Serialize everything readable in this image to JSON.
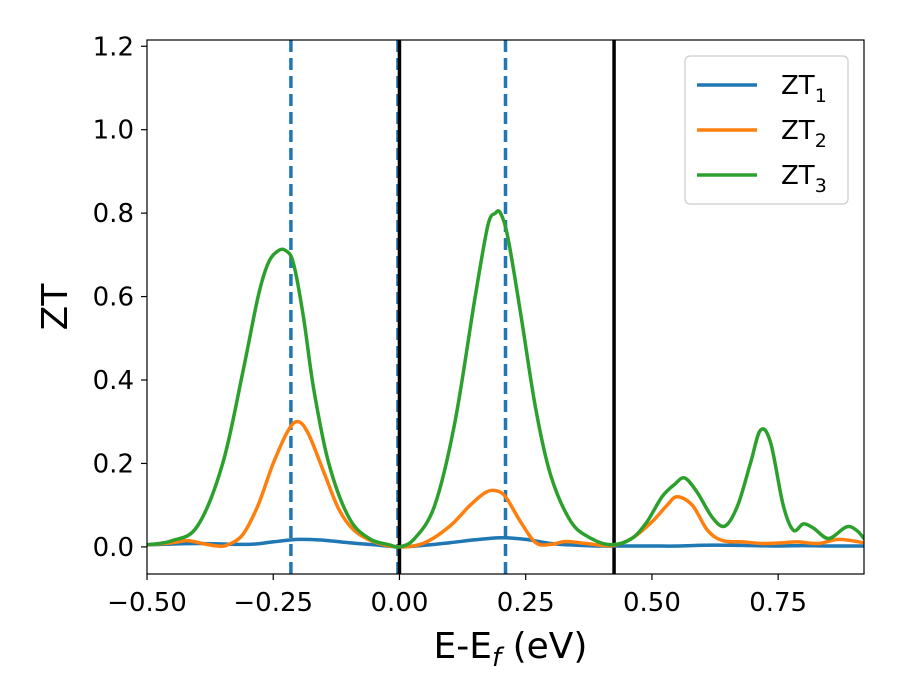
{
  "chart_data": {
    "type": "line",
    "xlabel": {
      "main": "E-E",
      "sub": "f",
      "suffix": " (eV)"
    },
    "ylabel": "ZT",
    "xlim": [
      -0.5,
      0.92
    ],
    "ylim": [
      -0.065,
      1.215
    ],
    "xticks": [
      -0.5,
      -0.25,
      0.0,
      0.25,
      0.5,
      0.75
    ],
    "xtick_labels": [
      "−0.50",
      "−0.25",
      "0.00",
      "0.25",
      "0.50",
      "0.75"
    ],
    "yticks": [
      0.0,
      0.2,
      0.4,
      0.6,
      0.8,
      1.0,
      1.2
    ],
    "ytick_labels": [
      "0.0",
      "0.2",
      "0.4",
      "0.6",
      "0.8",
      "1.0",
      "1.2"
    ],
    "legend_position": "top-right",
    "vlines": [
      {
        "x": -0.215,
        "style": "dashed",
        "color": "#1f77b4"
      },
      {
        "x": 0.21,
        "style": "dashed",
        "color": "#1f77b4"
      },
      {
        "x": -0.003,
        "style": "dashed",
        "color": "#1f77b4"
      },
      {
        "x": 0.0,
        "style": "solid",
        "color": "#000000"
      },
      {
        "x": 0.425,
        "style": "solid",
        "color": "#000000"
      }
    ],
    "series": [
      {
        "name": "ZT",
        "sub": "1",
        "color": "#1f77b4",
        "x": [
          -0.5,
          -0.4,
          -0.3,
          -0.25,
          -0.2,
          -0.15,
          -0.1,
          -0.05,
          0.0,
          0.05,
          0.1,
          0.15,
          0.2,
          0.25,
          0.3,
          0.35,
          0.4,
          0.45,
          0.5,
          0.55,
          0.6,
          0.65,
          0.7,
          0.75,
          0.8,
          0.85,
          0.92
        ],
        "values": [
          0.005,
          0.008,
          0.006,
          0.012,
          0.018,
          0.016,
          0.01,
          0.005,
          0.0,
          0.004,
          0.01,
          0.017,
          0.022,
          0.018,
          0.008,
          0.004,
          0.002,
          0.002,
          0.002,
          0.002,
          0.004,
          0.004,
          0.003,
          0.002,
          0.003,
          0.002,
          0.002
        ]
      },
      {
        "name": "ZT",
        "sub": "2",
        "color": "#ff7f0e",
        "x": [
          -0.5,
          -0.45,
          -0.42,
          -0.39,
          -0.36,
          -0.34,
          -0.31,
          -0.28,
          -0.25,
          -0.22,
          -0.2,
          -0.18,
          -0.15,
          -0.12,
          -0.09,
          -0.05,
          0.0,
          0.05,
          0.1,
          0.14,
          0.17,
          0.19,
          0.21,
          0.24,
          0.27,
          0.3,
          0.33,
          0.37,
          0.42,
          0.46,
          0.5,
          0.53,
          0.55,
          0.58,
          0.61,
          0.64,
          0.68,
          0.72,
          0.76,
          0.79,
          0.83,
          0.87,
          0.92
        ],
        "values": [
          0.005,
          0.01,
          0.015,
          0.008,
          0.002,
          0.005,
          0.03,
          0.1,
          0.2,
          0.28,
          0.3,
          0.27,
          0.18,
          0.09,
          0.04,
          0.012,
          0.0,
          0.01,
          0.05,
          0.1,
          0.13,
          0.135,
          0.12,
          0.06,
          0.01,
          0.006,
          0.013,
          0.008,
          0.003,
          0.02,
          0.06,
          0.1,
          0.12,
          0.1,
          0.04,
          0.015,
          0.012,
          0.008,
          0.01,
          0.012,
          0.008,
          0.018,
          0.01
        ]
      },
      {
        "name": "ZT",
        "sub": "3",
        "color": "#2ca02c",
        "x": [
          -0.5,
          -0.45,
          -0.4,
          -0.35,
          -0.31,
          -0.28,
          -0.26,
          -0.24,
          -0.225,
          -0.21,
          -0.19,
          -0.17,
          -0.14,
          -0.1,
          -0.06,
          -0.02,
          0.0,
          0.03,
          0.07,
          0.11,
          0.15,
          0.175,
          0.19,
          0.2,
          0.215,
          0.24,
          0.27,
          0.3,
          0.34,
          0.38,
          0.42,
          0.46,
          0.49,
          0.52,
          0.545,
          0.565,
          0.59,
          0.62,
          0.645,
          0.67,
          0.695,
          0.715,
          0.735,
          0.76,
          0.78,
          0.8,
          0.82,
          0.85,
          0.885,
          0.905,
          0.92
        ],
        "values": [
          0.005,
          0.015,
          0.05,
          0.2,
          0.42,
          0.6,
          0.68,
          0.71,
          0.71,
          0.68,
          0.55,
          0.38,
          0.2,
          0.07,
          0.02,
          0.005,
          0.0,
          0.02,
          0.1,
          0.3,
          0.6,
          0.77,
          0.8,
          0.8,
          0.74,
          0.56,
          0.33,
          0.17,
          0.06,
          0.02,
          0.005,
          0.02,
          0.06,
          0.12,
          0.15,
          0.165,
          0.13,
          0.07,
          0.05,
          0.1,
          0.2,
          0.28,
          0.25,
          0.1,
          0.04,
          0.055,
          0.045,
          0.02,
          0.048,
          0.04,
          0.02
        ]
      }
    ]
  }
}
